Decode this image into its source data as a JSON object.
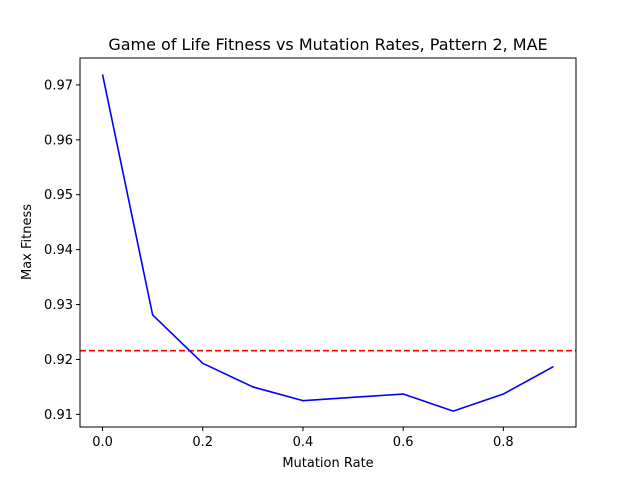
{
  "chart_data": {
    "type": "line",
    "title": "Game of Life Fitness vs Mutation Rates, Pattern 2, MAE",
    "xlabel": "Mutation Rate",
    "ylabel": "Max Fitness",
    "xlim": [
      -0.045,
      0.945
    ],
    "ylim": [
      0.9077,
      0.9749
    ],
    "xticks": [
      0.0,
      0.2,
      0.4,
      0.6,
      0.8
    ],
    "xtick_labels": [
      "0.0",
      "0.2",
      "0.4",
      "0.6",
      "0.8"
    ],
    "yticks": [
      0.91,
      0.92,
      0.93,
      0.94,
      0.95,
      0.96,
      0.97
    ],
    "ytick_labels": [
      "0.91",
      "0.92",
      "0.93",
      "0.94",
      "0.95",
      "0.96",
      "0.97"
    ],
    "grid": false,
    "series": [
      {
        "color": "#0000ff",
        "x": [
          0.0,
          0.1,
          0.2,
          0.3,
          0.4,
          0.5,
          0.6,
          0.7,
          0.8,
          0.9
        ],
        "values": [
          0.9719,
          0.9281,
          0.9193,
          0.915,
          0.9125,
          0.9131,
          0.9137,
          0.9106,
          0.9137,
          0.9187
        ]
      }
    ],
    "reference_line": {
      "orientation": "horizontal",
      "y": 0.9216,
      "color": "#ff0000",
      "style": "dashed"
    }
  }
}
